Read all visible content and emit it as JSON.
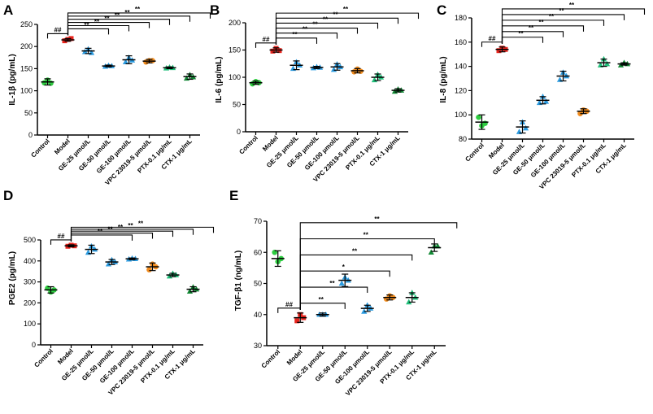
{
  "colors": {
    "Control": "#2ecc40",
    "Model": "#e8231c",
    "GE-25 μmol/L": "#2b9be0",
    "GE-50 μmol/L": "#2b9be0",
    "GE-100 μmol/L": "#2b9be0",
    "VPC 23019-5 μmol/L": "#f28c1e",
    "PTX-0.1 μg/mL": "#1fbf7a",
    "CTX-1 μg/mL": "#138a36"
  },
  "chart_data": [
    {
      "panel": "A",
      "type": "scatter",
      "ylabel": "IL-1β (pg/mL)",
      "ylim": [
        0,
        250
      ],
      "yticks": [
        "0",
        "50",
        "100",
        "150",
        "200",
        "250"
      ],
      "categories": [
        "Control",
        "Model",
        "GE-25 μmol/L",
        "GE-50 μmol/L",
        "GE-100 μmol/L",
        "VPC 23019-5 μmol/L",
        "PTX-0.1 μg/mL",
        "CTX-1 μg/mL"
      ],
      "means": [
        120,
        215,
        190,
        156,
        170,
        167,
        152,
        132
      ],
      "errors": [
        7,
        3,
        6,
        2,
        9,
        4,
        2,
        6
      ],
      "points": [
        [
          118,
          124,
          117
        ],
        [
          213,
          216,
          218
        ],
        [
          188,
          194,
          186
        ],
        [
          155,
          157,
          156
        ],
        [
          165,
          175,
          169
        ],
        [
          165,
          168,
          168
        ],
        [
          151,
          153,
          152
        ],
        [
          128,
          136,
          131
        ]
      ],
      "sig_marks": [
        "##",
        "**",
        "**",
        "**",
        "**",
        "**",
        "**"
      ]
    },
    {
      "panel": "B",
      "type": "scatter",
      "ylabel": "IL-6 (pg/mL)",
      "ylim": [
        0,
        200
      ],
      "yticks": [
        "0",
        "50",
        "100",
        "150",
        "200"
      ],
      "categories": [
        "Control",
        "Model",
        "GE-25 μmol/L",
        "GE-50 μmol/L",
        "GE-100 μmol/L",
        "VPC 23019-5 μmol/L",
        "PTX-0.1 μg/mL",
        "CTX-1 μg/mL"
      ],
      "means": [
        90,
        150,
        122,
        118,
        119,
        112,
        100,
        76
      ],
      "errors": [
        3,
        4,
        8,
        2,
        6,
        4,
        6,
        3
      ],
      "points": [
        [
          88,
          92,
          90
        ],
        [
          148,
          153,
          149
        ],
        [
          116,
          128,
          122
        ],
        [
          117,
          119,
          118
        ],
        [
          114,
          124,
          119
        ],
        [
          110,
          115,
          111
        ],
        [
          95,
          105,
          100
        ],
        [
          74,
          78,
          76
        ]
      ],
      "sig_marks": [
        "##",
        "**",
        "**",
        "**",
        "**",
        "**",
        "**"
      ]
    },
    {
      "panel": "C",
      "type": "scatter",
      "ylabel": "IL-8 (pg/mL)",
      "ylim": [
        80,
        180
      ],
      "yticks": [
        "80",
        "100",
        "120",
        "140",
        "160",
        "180"
      ],
      "categories": [
        "Control",
        "Model",
        "GE-25 μmol/L",
        "GE-50 μmol/L",
        "GE-100 μmol/L",
        "VPC 23019-5 μmol/L",
        "PTX-0.1 μg/mL",
        "CTX-1 μg/mL"
      ],
      "means": [
        94,
        154,
        90,
        112,
        132,
        103,
        143,
        142
      ],
      "errors": [
        6,
        2,
        5,
        3,
        4,
        2,
        3,
        1
      ],
      "points": [
        [
          98,
          91,
          93
        ],
        [
          153,
          155,
          154
        ],
        [
          86,
          94,
          89
        ],
        [
          110,
          115,
          111
        ],
        [
          129,
          135,
          132
        ],
        [
          101,
          104,
          103
        ],
        [
          141,
          146,
          142
        ],
        [
          141,
          143,
          142
        ]
      ],
      "sig_marks": [
        "##",
        "**",
        "**",
        "**",
        "**",
        "**",
        "**"
      ]
    },
    {
      "panel": "D",
      "type": "scatter",
      "ylabel": "PGE2 (pg/mL)",
      "ylim": [
        0,
        500
      ],
      "yticks": [
        "0",
        "100",
        "200",
        "300",
        "400",
        "500"
      ],
      "categories": [
        "Control",
        "Model",
        "GE-25 μmol/L",
        "GE-50 μmol/L",
        "GE-100 μmol/L",
        "VPC 23019-5 μmol/L",
        "PTX-0.1 μg/mL",
        "CTX-1 μg/mL"
      ],
      "means": [
        262,
        472,
        455,
        395,
        410,
        372,
        333,
        265
      ],
      "errors": [
        15,
        5,
        20,
        12,
        4,
        18,
        8,
        12
      ],
      "points": [
        [
          270,
          252,
          262
        ],
        [
          470,
          475,
          472
        ],
        [
          440,
          470,
          455
        ],
        [
          385,
          405,
          395
        ],
        [
          408,
          412,
          410
        ],
        [
          358,
          385,
          372
        ],
        [
          327,
          340,
          333
        ],
        [
          255,
          275,
          265
        ]
      ],
      "sig_marks": [
        "##",
        "**",
        "**",
        "**",
        "**",
        "**"
      ]
    },
    {
      "panel": "E",
      "type": "scatter",
      "ylabel": "TGF-β1 (ng/mL)",
      "ylim": [
        30,
        70
      ],
      "yticks": [
        "30",
        "40",
        "50",
        "60",
        "70"
      ],
      "categories": [
        "Control",
        "Model",
        "GE-25 μmol/L",
        "GE-50 μmol/L",
        "GE-100 μmol/L",
        "VPC 23019-5 μmol/L",
        "PTX-0.1 μg/mL",
        "CTX-1 μg/mL"
      ],
      "means": [
        58,
        39,
        40,
        51,
        42,
        45.5,
        45.5,
        61.5
      ],
      "errors": [
        2.5,
        1.5,
        0.5,
        2,
        1,
        0.8,
        1.5,
        1.2
      ],
      "points": [
        [
          60,
          57,
          58
        ],
        [
          38,
          40,
          39
        ],
        [
          40,
          40,
          40
        ],
        [
          50,
          52,
          51
        ],
        [
          41,
          43,
          42
        ],
        [
          45,
          46,
          45.5
        ],
        [
          44,
          47,
          45.5
        ],
        [
          60,
          62,
          62
        ]
      ],
      "sig_marks": [
        "##",
        "**",
        "**",
        "*",
        "**",
        "**",
        "**"
      ]
    }
  ]
}
